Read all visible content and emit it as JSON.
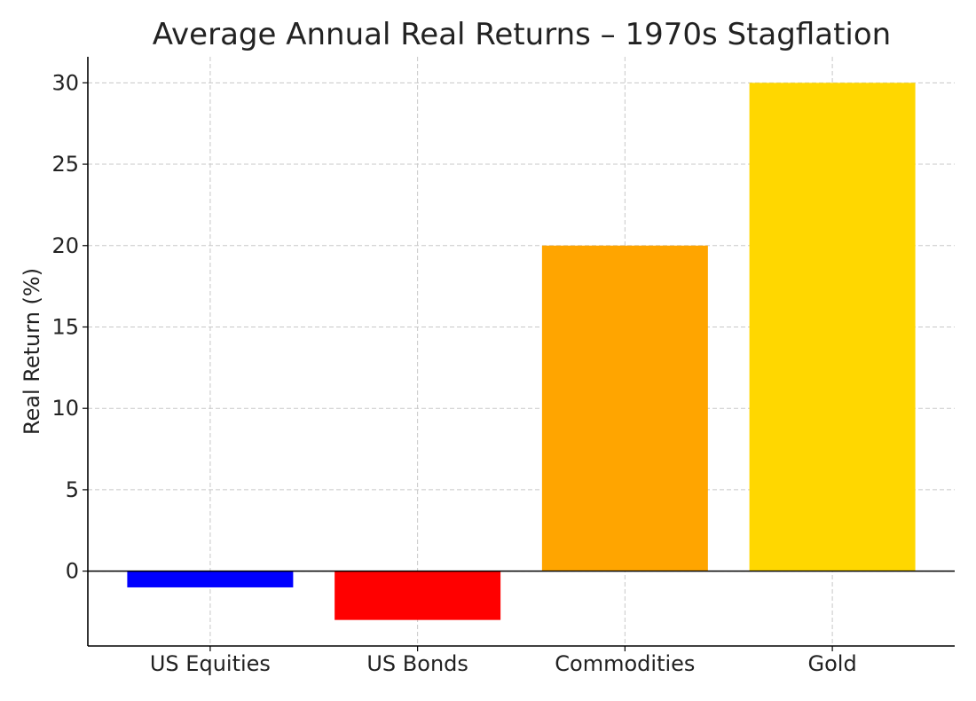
{
  "chart_data": {
    "type": "bar",
    "title": "Average Annual Real Returns – 1970s Stagflation",
    "xlabel": "",
    "ylabel": "Real Return (%)",
    "categories": [
      "US Equities",
      "US Bonds",
      "Commodities",
      "Gold"
    ],
    "values": [
      -1,
      -3,
      20,
      30
    ],
    "colors": [
      "#0000ff",
      "#ff0000",
      "#ffa500",
      "#ffd700"
    ],
    "ylim": [
      -4.6,
      31.6
    ],
    "yticks": [
      0,
      5,
      10,
      15,
      20,
      25,
      30
    ],
    "grid": true,
    "zero_line": true
  }
}
